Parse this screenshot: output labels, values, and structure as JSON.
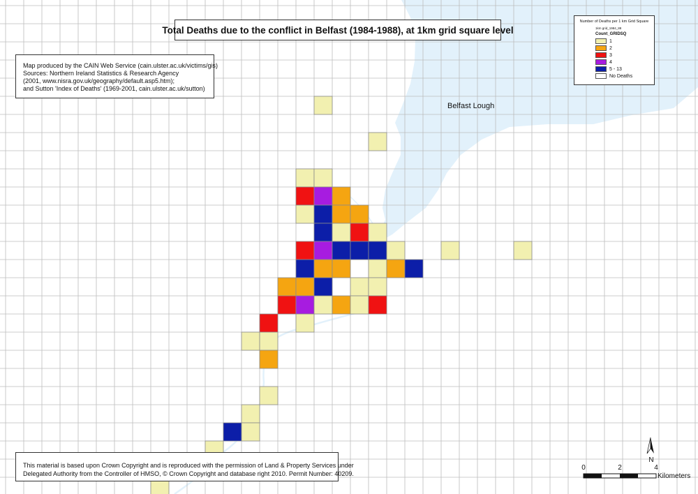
{
  "map_title": "Total Deaths due to the conflict in Belfast (1984-1988), at 1km grid square level",
  "credits": [
    "Map produced by the CAIN Web Service (cain.ulster.ac.uk/victims/gis)",
    "Sources: Northern Ireland Statistics & Research Agency",
    "(2001, www.nisra.gov.uk/geography/default.asp5.htm);",
    "and Sutton 'Index of Deaths' (1969-2001, cain.ulster.ac.uk/sutton)"
  ],
  "copyright": [
    "This material is based upon Crown Copyright and is reproduced with the permission of Land & Property Services under",
    "Delegated Authority from the Controller of HMSO, © Crown Copyright and database right 2010. Permit Number: 40209."
  ],
  "legend": {
    "heading": "Number of Deaths per 1 km Grid Square",
    "layer": "1km grid_1984_88",
    "field": "Count_GRIDSQ",
    "classes": [
      {
        "label": "1",
        "color": "#f2f0b0"
      },
      {
        "label": "2",
        "color": "#f5a511"
      },
      {
        "label": "3",
        "color": "#f01212"
      },
      {
        "label": "4",
        "color": "#a71ce0"
      },
      {
        "label": "5 - 13",
        "color": "#0c1ea8"
      },
      {
        "label": "No Deaths",
        "color": "#ffffff"
      }
    ]
  },
  "water_label": "Belfast Lough",
  "north_label": "N",
  "scale": {
    "ticks": [
      "0",
      "2",
      "4"
    ],
    "unit": "Kilometers"
  },
  "colors": {
    "water": "#e2f1fb",
    "grid": "#bdbdbd",
    "cell_border": "#8a8a8a"
  },
  "cells": [
    {
      "col": 17,
      "row": 5,
      "cls": 0
    },
    {
      "col": 20,
      "row": 7,
      "cls": 0
    },
    {
      "col": 16,
      "row": 9,
      "cls": 0
    },
    {
      "col": 17,
      "row": 9,
      "cls": 0
    },
    {
      "col": 16,
      "row": 10,
      "cls": 2
    },
    {
      "col": 17,
      "row": 10,
      "cls": 3
    },
    {
      "col": 18,
      "row": 10,
      "cls": 1
    },
    {
      "col": 16,
      "row": 11,
      "cls": 0
    },
    {
      "col": 17,
      "row": 11,
      "cls": 4
    },
    {
      "col": 18,
      "row": 11,
      "cls": 1
    },
    {
      "col": 19,
      "row": 11,
      "cls": 1
    },
    {
      "col": 17,
      "row": 12,
      "cls": 4
    },
    {
      "col": 18,
      "row": 12,
      "cls": 0
    },
    {
      "col": 19,
      "row": 12,
      "cls": 2
    },
    {
      "col": 20,
      "row": 12,
      "cls": 0
    },
    {
      "col": 16,
      "row": 13,
      "cls": 2
    },
    {
      "col": 17,
      "row": 13,
      "cls": 3
    },
    {
      "col": 18,
      "row": 13,
      "cls": 4
    },
    {
      "col": 19,
      "row": 13,
      "cls": 4
    },
    {
      "col": 20,
      "row": 13,
      "cls": 4
    },
    {
      "col": 21,
      "row": 13,
      "cls": 0
    },
    {
      "col": 24,
      "row": 13,
      "cls": 0
    },
    {
      "col": 28,
      "row": 13,
      "cls": 0
    },
    {
      "col": 16,
      "row": 14,
      "cls": 4
    },
    {
      "col": 17,
      "row": 14,
      "cls": 1
    },
    {
      "col": 18,
      "row": 14,
      "cls": 1
    },
    {
      "col": 20,
      "row": 14,
      "cls": 0
    },
    {
      "col": 21,
      "row": 14,
      "cls": 1
    },
    {
      "col": 22,
      "row": 14,
      "cls": 4
    },
    {
      "col": 15,
      "row": 15,
      "cls": 1
    },
    {
      "col": 16,
      "row": 15,
      "cls": 1
    },
    {
      "col": 17,
      "row": 15,
      "cls": 4
    },
    {
      "col": 19,
      "row": 15,
      "cls": 0
    },
    {
      "col": 20,
      "row": 15,
      "cls": 0
    },
    {
      "col": 15,
      "row": 16,
      "cls": 2
    },
    {
      "col": 16,
      "row": 16,
      "cls": 3
    },
    {
      "col": 17,
      "row": 16,
      "cls": 0
    },
    {
      "col": 18,
      "row": 16,
      "cls": 1
    },
    {
      "col": 19,
      "row": 16,
      "cls": 0
    },
    {
      "col": 20,
      "row": 16,
      "cls": 2
    },
    {
      "col": 14,
      "row": 17,
      "cls": 2
    },
    {
      "col": 16,
      "row": 17,
      "cls": 0
    },
    {
      "col": 13,
      "row": 18,
      "cls": 0
    },
    {
      "col": 14,
      "row": 18,
      "cls": 0
    },
    {
      "col": 14,
      "row": 19,
      "cls": 1
    },
    {
      "col": 14,
      "row": 21,
      "cls": 0
    },
    {
      "col": 13,
      "row": 22,
      "cls": 0
    },
    {
      "col": 12,
      "row": 23,
      "cls": 4
    },
    {
      "col": 13,
      "row": 23,
      "cls": 0
    },
    {
      "col": 11,
      "row": 24,
      "cls": 0
    },
    {
      "col": 8,
      "row": 26,
      "cls": 0
    }
  ]
}
